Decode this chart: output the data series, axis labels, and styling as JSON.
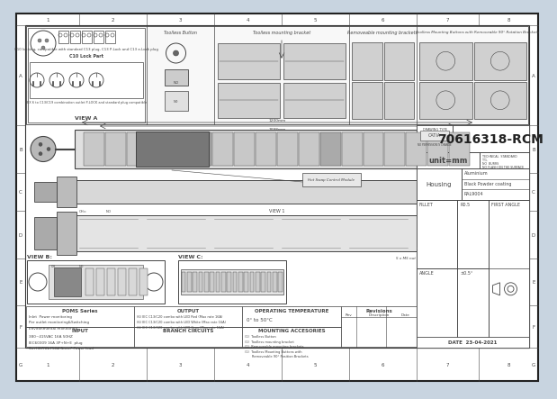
{
  "bg_color": "#c8d4e0",
  "sheet_bg": "#ffffff",
  "line_color": "#444444",
  "border_color": "#333333",
  "title_number": "70616318-RCM",
  "unit": "unit=mm",
  "housing_label": "Housing",
  "housing_val1": "Aluminium",
  "housing_val2": "Black Powder coating",
  "housing_val3": "RAL9004",
  "date_str": "DATE  23-04-2021",
  "fillet_val": "R0.5",
  "angle_val": "±0.5°",
  "first_angle": "FIRST ANGLE",
  "technical_standard": "TECHNICAL  STANDARD\nTT1.\nNO  BURRS\nNO FLASH ON THE SURFACE",
  "poms_title": "POMS Series",
  "poms_lines": [
    "Inlet  Power monitoring",
    "Per outlet monitoring&Switching",
    "Environmental monitoring"
  ],
  "output_title": "OUTPUT",
  "output_lines": [
    "(6) IEC C13/C20 combo with LED Red (Max rate 16A)",
    "(6) IEC C13/C20 combo with LED White (Max rate 16A)",
    "(6) IEC C13/C20 combo with LED Gray (Max rate 16A)"
  ],
  "input_title": "INPUT",
  "input_lines": [
    "380~415VAC 16A 50HZ",
    "IEC60309 16A 3P+N+E  plug",
    "3m H07RN-F5G2.5mm² Power lead"
  ],
  "branch_title": "BRANCH CIRCUITS",
  "op_temp_title": "OPERATING TEMPERATURE",
  "op_temp_val": "0° to 50°C",
  "mounting_title": "MOUNTING ACCESORIES",
  "mounting_lines": [
    "(1)  Toolless Button",
    "(1)  Toolless mounting bracket",
    "(1)  Removeable mounting brackets",
    "(1)  Toolless Mounting Buttons with",
    "       Removeable 90° Position Brackets"
  ],
  "revisions_label": "Revisions",
  "rev_col1": "Rev",
  "rev_col2": "Description",
  "rev_col3": "Date",
  "view_b_label": "VIEW B:",
  "view_c_label": "VIEW C:",
  "toolless_btn_label": "Toolless Button",
  "toolless_bracket_label": "Toolless mounting bracket",
  "removeable_label": "Removeable mounting brackets",
  "toolless_rotatable_label": "Toolless Mounting Buttons with Removeable 90° Rotation Brackets",
  "view_a_label": "VIEW A",
  "c10_label": "C10 locking, compatible with standard C13 plug, C13 P-Lock and C13 e-Lock plug",
  "c10_lock_label": "C10 Lock Part",
  "combo_label": "IEX 6 to C13/C19 combination outlet P-LOCK and standard plug compatible",
  "pdu_length_label1": "1200mm",
  "pdu_length_label2": "1098mm",
  "hot_swap_label": "Hot Swap Control Module",
  "m5_nut_label": "5 x M5 nut (multiposition fixing centres)",
  "drawing_type_label": "DRAWING TYPE",
  "catia_label": "CATIA",
  "permission_label": "NO PERMISSION IS CHANGE",
  "col_positions": [
    8,
    78,
    153,
    228,
    303,
    378,
    453,
    522,
    588
  ],
  "row_positions": [
    6,
    19,
    130,
    183,
    225,
    278,
    330,
    377,
    414
  ],
  "col_labels": [
    "1",
    "2",
    "3",
    "4",
    "5",
    "6",
    "7",
    "8"
  ],
  "row_labels": [
    "A",
    "B",
    "C",
    "D",
    "E",
    "F",
    "G"
  ]
}
